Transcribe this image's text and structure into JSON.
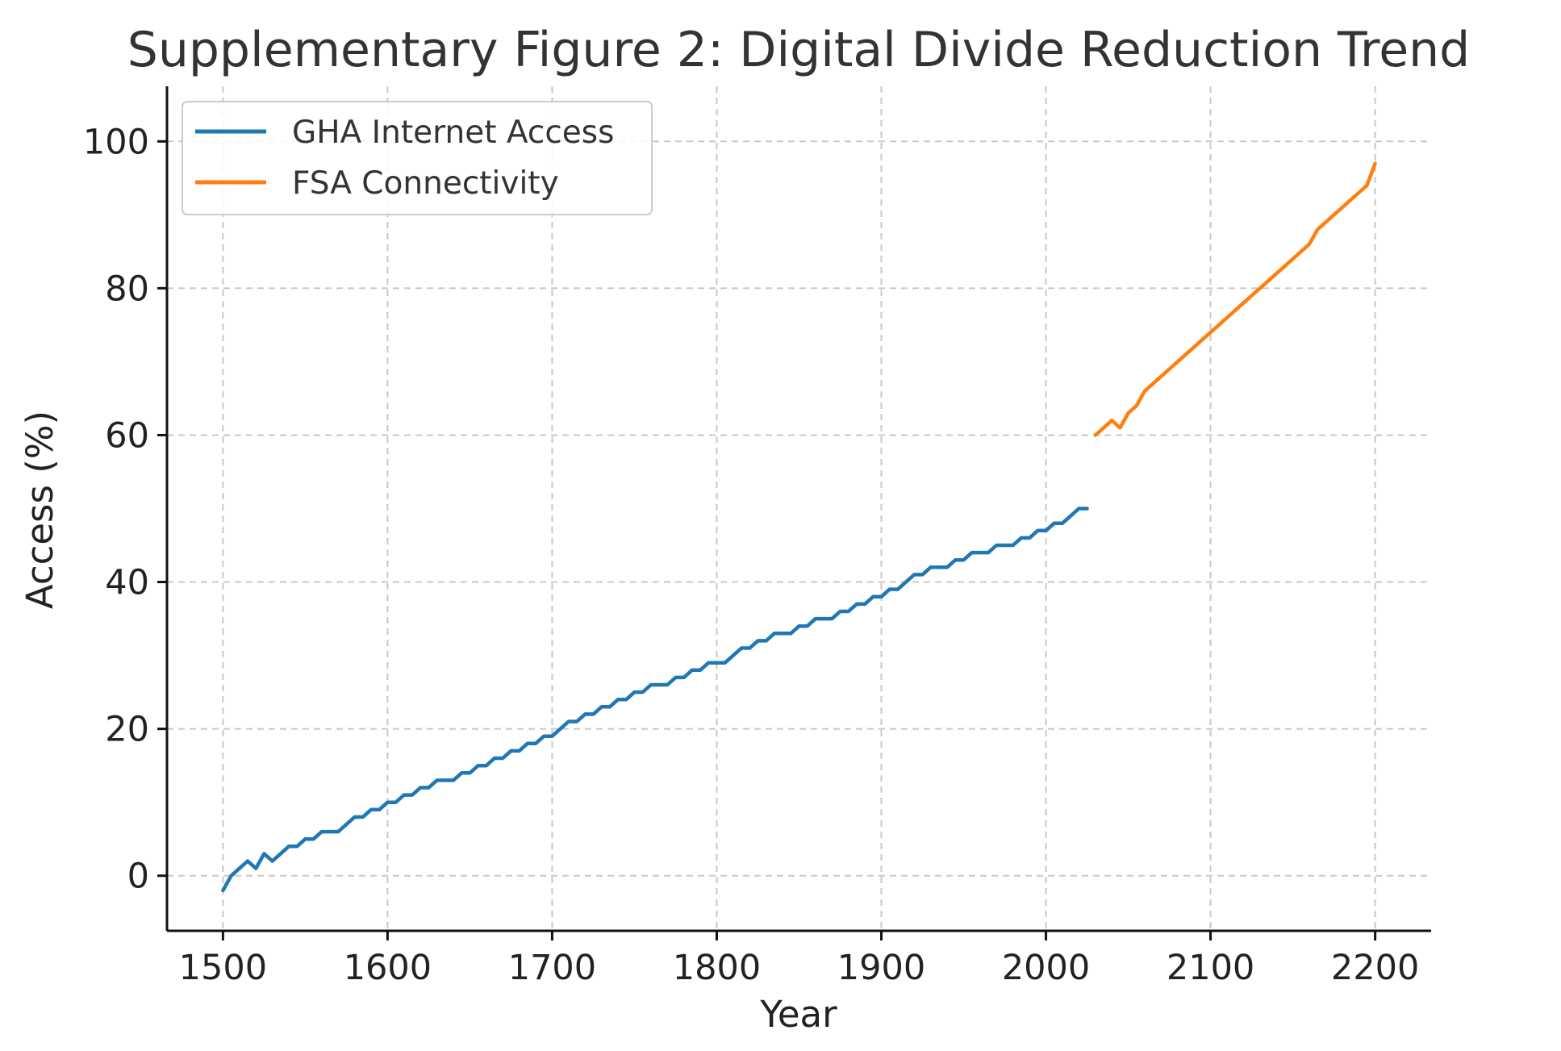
{
  "chart_data": {
    "type": "line",
    "title": "Supplementary Figure 2: Digital Divide Reduction Trend",
    "xlabel": "Year",
    "ylabel": "Access (%)",
    "xlim": [
      1466,
      2234
    ],
    "ylim": [
      -7.5,
      107.5
    ],
    "xticks": [
      1500,
      1600,
      1700,
      1800,
      1900,
      2000,
      2100,
      2200
    ],
    "yticks": [
      0,
      20,
      40,
      60,
      80,
      100
    ],
    "grid": true,
    "legend_position": "upper-left",
    "series": [
      {
        "name": "GHA Internet Access",
        "color": "#1f77b4",
        "x": [
          1500,
          1505,
          1510,
          1515,
          1520,
          1525,
          1530,
          1535,
          1540,
          1545,
          1550,
          1555,
          1560,
          1565,
          1570,
          1575,
          1580,
          1585,
          1590,
          1595,
          1600,
          1605,
          1610,
          1615,
          1620,
          1625,
          1630,
          1635,
          1640,
          1645,
          1650,
          1655,
          1660,
          1665,
          1670,
          1675,
          1680,
          1685,
          1690,
          1695,
          1700,
          1705,
          1710,
          1715,
          1720,
          1725,
          1730,
          1735,
          1740,
          1745,
          1750,
          1755,
          1760,
          1765,
          1770,
          1775,
          1780,
          1785,
          1790,
          1795,
          1800,
          1805,
          1810,
          1815,
          1820,
          1825,
          1830,
          1835,
          1840,
          1845,
          1850,
          1855,
          1860,
          1865,
          1870,
          1875,
          1880,
          1885,
          1890,
          1895,
          1900,
          1905,
          1910,
          1915,
          1920,
          1925,
          1930,
          1935,
          1940,
          1945,
          1950,
          1955,
          1960,
          1965,
          1970,
          1975,
          1980,
          1985,
          1990,
          1995,
          2000,
          2005,
          2010,
          2015,
          2020,
          2025
        ],
        "y": [
          -2,
          0,
          1,
          2,
          1,
          3,
          2,
          3,
          4,
          4,
          5,
          5,
          6,
          6,
          6,
          7,
          8,
          8,
          9,
          9,
          10,
          10,
          11,
          11,
          12,
          12,
          13,
          13,
          13,
          14,
          14,
          15,
          15,
          16,
          16,
          17,
          17,
          18,
          18,
          19,
          19,
          20,
          21,
          21,
          22,
          22,
          23,
          23,
          24,
          24,
          25,
          25,
          26,
          26,
          26,
          27,
          27,
          28,
          28,
          29,
          29,
          29,
          30,
          31,
          31,
          32,
          32,
          33,
          33,
          33,
          34,
          34,
          35,
          35,
          35,
          36,
          36,
          37,
          37,
          38,
          38,
          39,
          39,
          40,
          41,
          41,
          42,
          42,
          42,
          43,
          43,
          44,
          44,
          44,
          45,
          45,
          45,
          46,
          46,
          47,
          47,
          48,
          48,
          49,
          50,
          50
        ]
      },
      {
        "name": "FSA Connectivity",
        "color": "#ff7f0e",
        "x": [
          2030,
          2035,
          2040,
          2045,
          2050,
          2055,
          2060,
          2065,
          2070,
          2075,
          2080,
          2085,
          2090,
          2095,
          2100,
          2105,
          2110,
          2115,
          2120,
          2125,
          2130,
          2135,
          2140,
          2145,
          2150,
          2155,
          2160,
          2165,
          2170,
          2175,
          2180,
          2185,
          2190,
          2195,
          2200
        ],
        "y": [
          60,
          61,
          62,
          61,
          63,
          64,
          66,
          67,
          68,
          69,
          70,
          71,
          72,
          73,
          74,
          75,
          76,
          77,
          78,
          79,
          80,
          81,
          82,
          83,
          84,
          85,
          86,
          88,
          89,
          90,
          91,
          92,
          93,
          94,
          97
        ]
      }
    ]
  }
}
